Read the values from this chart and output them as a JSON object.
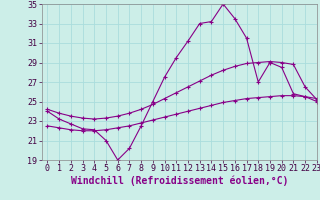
{
  "line1_x": [
    0,
    1,
    2,
    3,
    4,
    5,
    6,
    7,
    8,
    9,
    10,
    11,
    12,
    13,
    14,
    15,
    16,
    17,
    18,
    19,
    20,
    21,
    22,
    23
  ],
  "line1_y": [
    24.0,
    23.2,
    22.7,
    22.2,
    22.1,
    21.0,
    19.0,
    20.2,
    22.5,
    25.0,
    27.5,
    29.5,
    31.2,
    33.0,
    33.2,
    35.0,
    33.5,
    31.5,
    27.0,
    29.0,
    28.5,
    25.8,
    25.5,
    25.0
  ],
  "line2_x": [
    0,
    1,
    2,
    3,
    4,
    5,
    6,
    7,
    8,
    9,
    10,
    11,
    12,
    13,
    14,
    15,
    16,
    17,
    18,
    19,
    20,
    21,
    22,
    23
  ],
  "line2_y": [
    24.2,
    23.8,
    23.5,
    23.3,
    23.2,
    23.3,
    23.5,
    23.8,
    24.2,
    24.7,
    25.3,
    25.9,
    26.5,
    27.1,
    27.7,
    28.2,
    28.6,
    28.9,
    29.0,
    29.1,
    29.0,
    28.8,
    26.5,
    25.2
  ],
  "line3_x": [
    0,
    1,
    2,
    3,
    4,
    5,
    6,
    7,
    8,
    9,
    10,
    11,
    12,
    13,
    14,
    15,
    16,
    17,
    18,
    19,
    20,
    21,
    22,
    23
  ],
  "line3_y": [
    22.5,
    22.3,
    22.1,
    22.0,
    22.0,
    22.1,
    22.3,
    22.5,
    22.8,
    23.1,
    23.4,
    23.7,
    24.0,
    24.3,
    24.6,
    24.9,
    25.1,
    25.3,
    25.4,
    25.5,
    25.6,
    25.6,
    25.5,
    25.3
  ],
  "color": "#880088",
  "bg_color": "#cceee8",
  "grid_color": "#aadddd",
  "xlabel": "Windchill (Refroidissement éolien,°C)",
  "ylim": [
    19,
    35
  ],
  "xlim": [
    -0.5,
    23
  ],
  "yticks": [
    19,
    21,
    23,
    25,
    27,
    29,
    31,
    33,
    35
  ],
  "xticks": [
    0,
    1,
    2,
    3,
    4,
    5,
    6,
    7,
    8,
    9,
    10,
    11,
    12,
    13,
    14,
    15,
    16,
    17,
    18,
    19,
    20,
    21,
    22,
    23
  ],
  "marker": "+",
  "markersize": 3.5,
  "linewidth": 0.8,
  "xlabel_fontsize": 7.0,
  "tick_fontsize": 6.0
}
